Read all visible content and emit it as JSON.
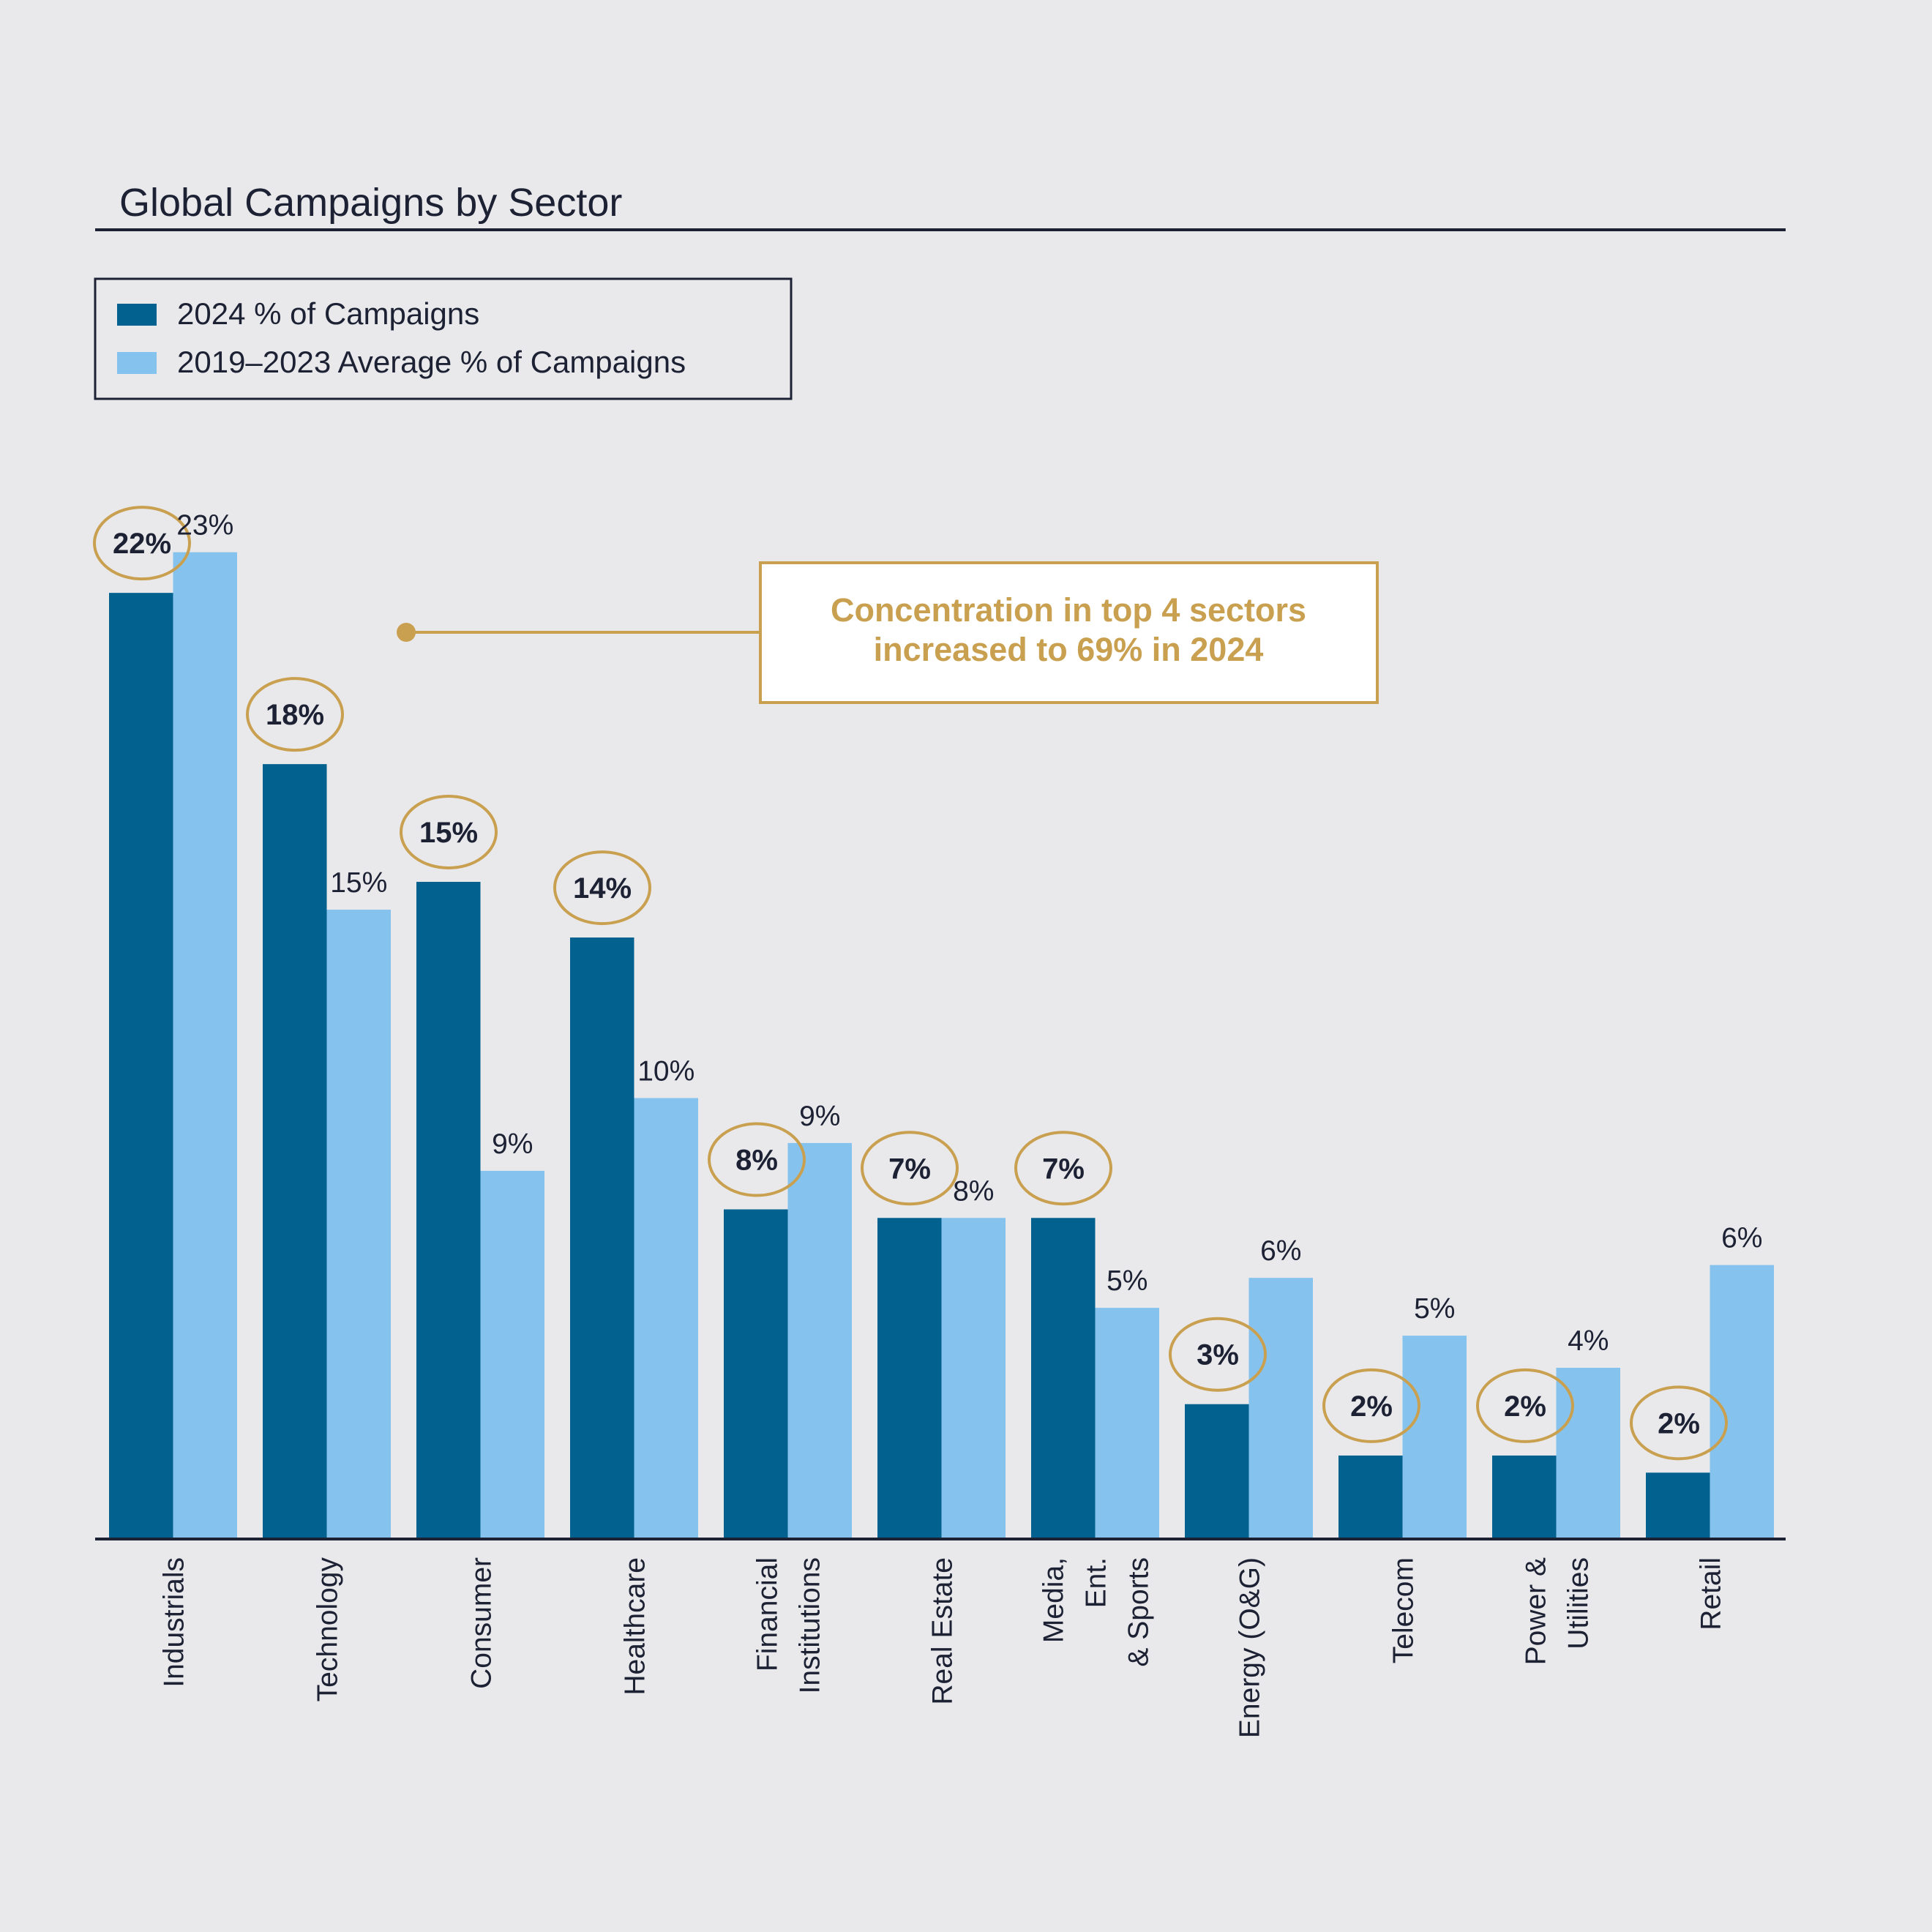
{
  "colors": {
    "background": "#e9e9eb",
    "series_2024": "#02618e",
    "series_avg": "#85c3ee",
    "highlight": "#c9a050",
    "text": "#1c2134"
  },
  "chart_data": {
    "type": "bar",
    "title": "Global Campaigns by Sector",
    "xlabel": "",
    "ylabel": "",
    "ylim": [
      0,
      25
    ],
    "grid": false,
    "legend_position": "top-left",
    "categories": [
      [
        "Industrials"
      ],
      [
        "Technology"
      ],
      [
        "Consumer"
      ],
      [
        "Healthcare"
      ],
      [
        "Financial",
        "Institutions"
      ],
      [
        "Real Estate"
      ],
      [
        "Media,",
        "Ent.",
        "& Sports"
      ],
      [
        "Energy (O&G)"
      ],
      [
        "Telecom"
      ],
      [
        "Power &",
        "Utilities"
      ],
      [
        "Retail"
      ]
    ],
    "series": [
      {
        "name": "2024 % of Campaigns",
        "values": [
          22,
          18,
          15,
          14,
          8,
          7,
          7,
          3,
          2,
          2,
          2
        ],
        "bar_values": [
          22.1,
          18.1,
          15.35,
          14.05,
          7.7,
          7.5,
          7.5,
          3.15,
          1.95,
          1.95,
          1.55
        ],
        "labels": [
          "22%",
          "18%",
          "15%",
          "14%",
          "8%",
          "7%",
          "7%",
          "3%",
          "2%",
          "2%",
          "2%"
        ],
        "color": "#02618e"
      },
      {
        "name": "2019–2023 Average % of Campaigns",
        "values": [
          23,
          15,
          9,
          10,
          9,
          8,
          5,
          6,
          5,
          4,
          6
        ],
        "bar_values": [
          23.05,
          14.7,
          8.6,
          10.3,
          9.25,
          7.5,
          5.4,
          6.1,
          4.75,
          4.0,
          6.4
        ],
        "labels": [
          "23%",
          "15%",
          "9%",
          "10%",
          "9%",
          "8%",
          "5%",
          "6%",
          "5%",
          "4%",
          "6%"
        ],
        "color": "#85c3ee"
      }
    ],
    "annotation": {
      "lines": [
        "Concentration in top 4 sectors",
        "increased to 69% in 2024"
      ]
    }
  }
}
